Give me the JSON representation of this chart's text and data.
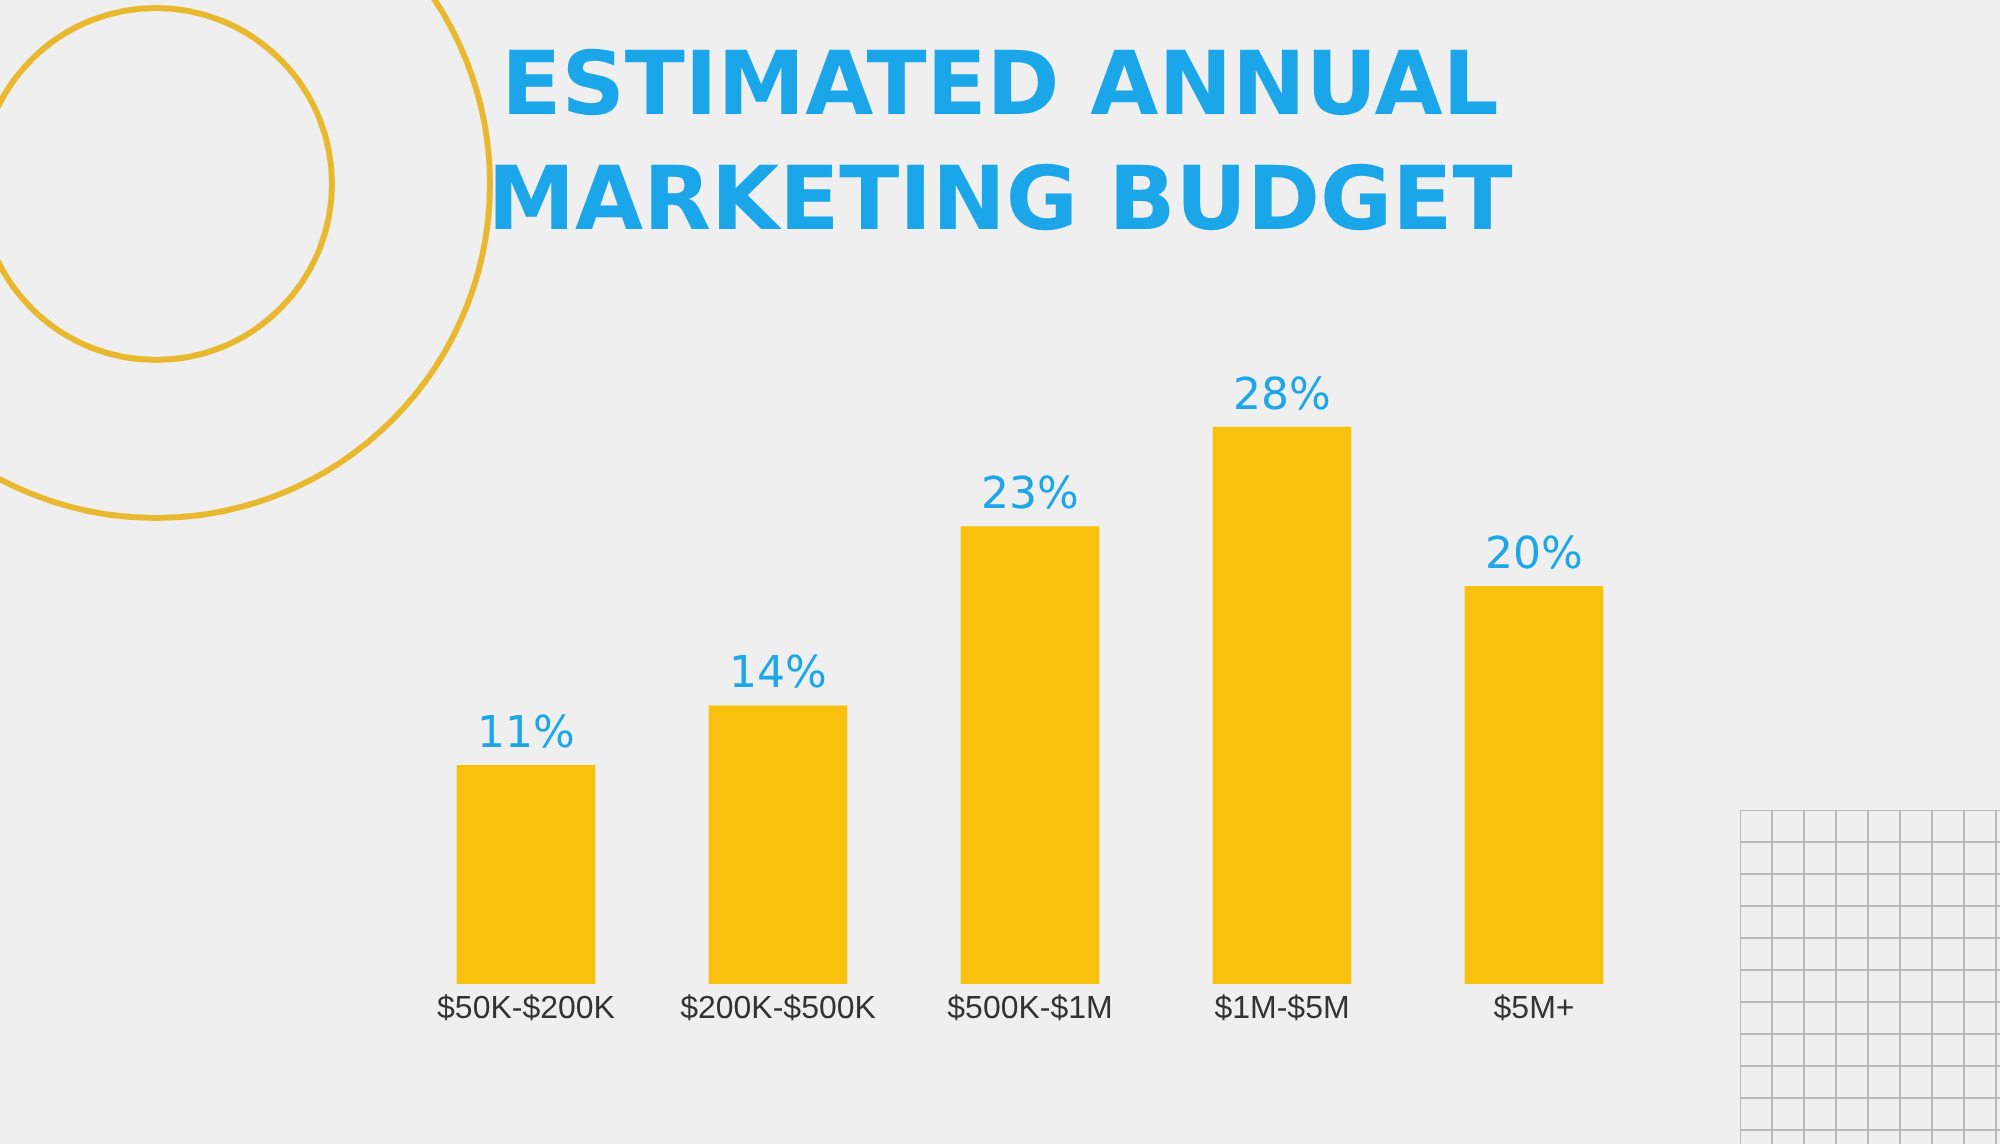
{
  "chart_data": {
    "type": "bar",
    "title": "ESTIMATED ANNUAL MARKETING BUDGET",
    "categories": [
      "$50K-$200K",
      "$200K-$500K",
      "$500K-$1M",
      "$1M-$5M",
      "$5M+"
    ],
    "values": [
      11,
      14,
      23,
      28,
      20
    ],
    "value_labels": [
      "11%",
      "14%",
      "23%",
      "28%",
      "20%"
    ],
    "color": "#f8c10d",
    "legend": false
  }
}
